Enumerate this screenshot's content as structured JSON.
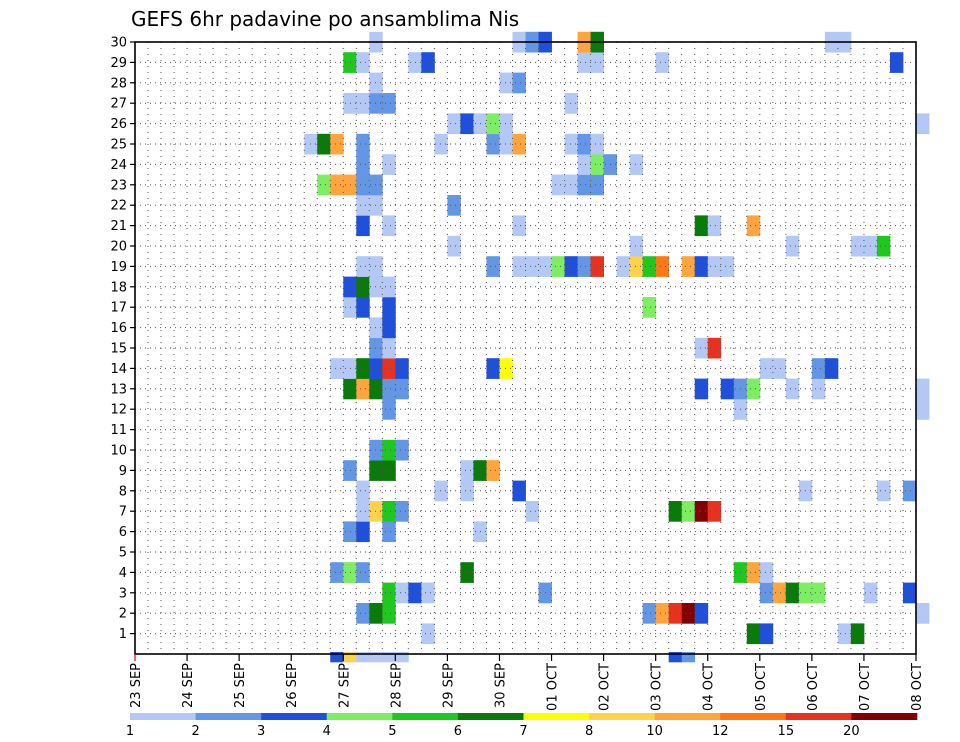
{
  "chart_data": {
    "type": "heatmap",
    "title": "GEFS 6hr padavine po ansamblima Nis",
    "x_tick_labels": [
      "23 SEP",
      "24 SEP",
      "25 SEP",
      "26 SEP",
      "27 SEP",
      "28 SEP",
      "29 SEP",
      "30 SEP",
      "01 OCT",
      "02 OCT",
      "03 OCT",
      "04 OCT",
      "05 OCT",
      "06 OCT",
      "07 OCT",
      "08 OCT"
    ],
    "y_range": [
      0,
      30
    ],
    "y_ticks": [
      1,
      2,
      3,
      4,
      5,
      6,
      7,
      8,
      9,
      10,
      11,
      12,
      13,
      14,
      15,
      16,
      17,
      18,
      19,
      20,
      21,
      22,
      23,
      24,
      25,
      26,
      27,
      28,
      29,
      30
    ],
    "grid": true,
    "time_steps_per_day": 4,
    "legend": {
      "placement": "bottom",
      "levels": [
        "1",
        "2",
        "3",
        "4",
        "5",
        "6",
        "7",
        "8",
        "10",
        "12",
        "15",
        "20"
      ],
      "colors": [
        "#b4c8f5",
        "#6496e6",
        "#1e50dc",
        "#7ded62",
        "#1ec81e",
        "#0a7a0a",
        "#ffff00",
        "#ffd24a",
        "#ffa53c",
        "#ff7814",
        "#e6321e",
        "#820000"
      ]
    },
    "cells": [
      {
        "member": 0,
        "step": 15,
        "value": 3
      },
      {
        "member": 0,
        "step": 16,
        "value": 8
      },
      {
        "member": 0,
        "step": 17,
        "value": 1
      },
      {
        "member": 0,
        "step": 18,
        "value": 1
      },
      {
        "member": 0,
        "step": 19,
        "value": 1
      },
      {
        "member": 0,
        "step": 20,
        "value": 1
      },
      {
        "member": 0,
        "step": 41,
        "value": 3
      },
      {
        "member": 0,
        "step": 42,
        "value": 2
      },
      {
        "member": 1,
        "step": 22,
        "value": 1
      },
      {
        "member": 1,
        "step": 47,
        "value": 6
      },
      {
        "member": 1,
        "step": 48,
        "value": 3
      },
      {
        "member": 1,
        "step": 54,
        "value": 1
      },
      {
        "member": 1,
        "step": 55,
        "value": 6
      },
      {
        "member": 2,
        "step": 17,
        "value": 2
      },
      {
        "member": 2,
        "step": 18,
        "value": 6
      },
      {
        "member": 2,
        "step": 19,
        "value": 5
      },
      {
        "member": 2,
        "step": 39,
        "value": 2
      },
      {
        "member": 2,
        "step": 40,
        "value": 10
      },
      {
        "member": 2,
        "step": 41,
        "value": 15
      },
      {
        "member": 2,
        "step": 42,
        "value": 20
      },
      {
        "member": 2,
        "step": 43,
        "value": 3
      },
      {
        "member": 2,
        "step": 60,
        "value": 1
      },
      {
        "member": 3,
        "step": 19,
        "value": 5
      },
      {
        "member": 3,
        "step": 20,
        "value": 1
      },
      {
        "member": 3,
        "step": 21,
        "value": 3
      },
      {
        "member": 3,
        "step": 22,
        "value": 1
      },
      {
        "member": 3,
        "step": 31,
        "value": 2
      },
      {
        "member": 3,
        "step": 48,
        "value": 2
      },
      {
        "member": 3,
        "step": 49,
        "value": 10
      },
      {
        "member": 3,
        "step": 50,
        "value": 6
      },
      {
        "member": 3,
        "step": 51,
        "value": 4
      },
      {
        "member": 3,
        "step": 52,
        "value": 4
      },
      {
        "member": 3,
        "step": 56,
        "value": 1
      },
      {
        "member": 3,
        "step": 59,
        "value": 3
      },
      {
        "member": 4,
        "step": 15,
        "value": 2
      },
      {
        "member": 4,
        "step": 16,
        "value": 4
      },
      {
        "member": 4,
        "step": 17,
        "value": 2
      },
      {
        "member": 4,
        "step": 25,
        "value": 6
      },
      {
        "member": 4,
        "step": 46,
        "value": 5
      },
      {
        "member": 4,
        "step": 47,
        "value": 10
      },
      {
        "member": 4,
        "step": 48,
        "value": 1
      },
      {
        "member": 6,
        "step": 16,
        "value": 2
      },
      {
        "member": 6,
        "step": 17,
        "value": 3
      },
      {
        "member": 6,
        "step": 19,
        "value": 2
      },
      {
        "member": 6,
        "step": 26,
        "value": 1
      },
      {
        "member": 7,
        "step": 17,
        "value": 1
      },
      {
        "member": 7,
        "step": 18,
        "value": 8
      },
      {
        "member": 7,
        "step": 19,
        "value": 5
      },
      {
        "member": 7,
        "step": 20,
        "value": 2
      },
      {
        "member": 7,
        "step": 30,
        "value": 1
      },
      {
        "member": 7,
        "step": 41,
        "value": 6
      },
      {
        "member": 7,
        "step": 42,
        "value": 4
      },
      {
        "member": 7,
        "step": 43,
        "value": 20
      },
      {
        "member": 7,
        "step": 44,
        "value": 15
      },
      {
        "member": 8,
        "step": 17,
        "value": 1
      },
      {
        "member": 8,
        "step": 23,
        "value": 1
      },
      {
        "member": 8,
        "step": 25,
        "value": 1
      },
      {
        "member": 8,
        "step": 29,
        "value": 3
      },
      {
        "member": 8,
        "step": 51,
        "value": 1
      },
      {
        "member": 8,
        "step": 57,
        "value": 1
      },
      {
        "member": 8,
        "step": 59,
        "value": 2
      },
      {
        "member": 9,
        "step": 16,
        "value": 2
      },
      {
        "member": 9,
        "step": 18,
        "value": 6
      },
      {
        "member": 9,
        "step": 19,
        "value": 6
      },
      {
        "member": 9,
        "step": 25,
        "value": 1
      },
      {
        "member": 9,
        "step": 26,
        "value": 6
      },
      {
        "member": 9,
        "step": 27,
        "value": 10
      },
      {
        "member": 10,
        "step": 18,
        "value": 2
      },
      {
        "member": 10,
        "step": 19,
        "value": 5
      },
      {
        "member": 10,
        "step": 20,
        "value": 2
      },
      {
        "member": 12,
        "step": 19,
        "value": 2
      },
      {
        "member": 12,
        "step": 46,
        "value": 1
      },
      {
        "member": 12,
        "step": 60,
        "value": 1
      },
      {
        "member": 13,
        "step": 16,
        "value": 6
      },
      {
        "member": 13,
        "step": 17,
        "value": 10
      },
      {
        "member": 13,
        "step": 18,
        "value": 6
      },
      {
        "member": 13,
        "step": 19,
        "value": 2
      },
      {
        "member": 13,
        "step": 20,
        "value": 2
      },
      {
        "member": 13,
        "step": 43,
        "value": 3
      },
      {
        "member": 13,
        "step": 45,
        "value": 3
      },
      {
        "member": 13,
        "step": 46,
        "value": 2
      },
      {
        "member": 13,
        "step": 47,
        "value": 4
      },
      {
        "member": 13,
        "step": 50,
        "value": 1
      },
      {
        "member": 13,
        "step": 52,
        "value": 1
      },
      {
        "member": 13,
        "step": 60,
        "value": 1
      },
      {
        "member": 14,
        "step": 15,
        "value": 1
      },
      {
        "member": 14,
        "step": 16,
        "value": 1
      },
      {
        "member": 14,
        "step": 17,
        "value": 6
      },
      {
        "member": 14,
        "step": 18,
        "value": 3
      },
      {
        "member": 14,
        "step": 19,
        "value": 15
      },
      {
        "member": 14,
        "step": 20,
        "value": 3
      },
      {
        "member": 14,
        "step": 27,
        "value": 3
      },
      {
        "member": 14,
        "step": 28,
        "value": 7
      },
      {
        "member": 14,
        "step": 48,
        "value": 1
      },
      {
        "member": 14,
        "step": 49,
        "value": 1
      },
      {
        "member": 14,
        "step": 52,
        "value": 2
      },
      {
        "member": 14,
        "step": 53,
        "value": 3
      },
      {
        "member": 15,
        "step": 18,
        "value": 2
      },
      {
        "member": 15,
        "step": 19,
        "value": 1
      },
      {
        "member": 15,
        "step": 43,
        "value": 1
      },
      {
        "member": 15,
        "step": 44,
        "value": 15
      },
      {
        "member": 16,
        "step": 18,
        "value": 1
      },
      {
        "member": 16,
        "step": 19,
        "value": 3
      },
      {
        "member": 17,
        "step": 16,
        "value": 1
      },
      {
        "member": 17,
        "step": 17,
        "value": 3
      },
      {
        "member": 17,
        "step": 19,
        "value": 3
      },
      {
        "member": 17,
        "step": 39,
        "value": 4
      },
      {
        "member": 18,
        "step": 16,
        "value": 3
      },
      {
        "member": 18,
        "step": 17,
        "value": 6
      },
      {
        "member": 18,
        "step": 18,
        "value": 1
      },
      {
        "member": 18,
        "step": 19,
        "value": 1
      },
      {
        "member": 19,
        "step": 17,
        "value": 1
      },
      {
        "member": 19,
        "step": 18,
        "value": 1
      },
      {
        "member": 19,
        "step": 27,
        "value": 2
      },
      {
        "member": 19,
        "step": 29,
        "value": 1
      },
      {
        "member": 19,
        "step": 30,
        "value": 1
      },
      {
        "member": 19,
        "step": 31,
        "value": 1
      },
      {
        "member": 19,
        "step": 32,
        "value": 4
      },
      {
        "member": 19,
        "step": 33,
        "value": 3
      },
      {
        "member": 19,
        "step": 34,
        "value": 2
      },
      {
        "member": 19,
        "step": 35,
        "value": 15
      },
      {
        "member": 19,
        "step": 37,
        "value": 1
      },
      {
        "member": 19,
        "step": 38,
        "value": 8
      },
      {
        "member": 19,
        "step": 39,
        "value": 5
      },
      {
        "member": 19,
        "step": 40,
        "value": 12
      },
      {
        "member": 19,
        "step": 42,
        "value": 10
      },
      {
        "member": 19,
        "step": 43,
        "value": 3
      },
      {
        "member": 19,
        "step": 44,
        "value": 1
      },
      {
        "member": 19,
        "step": 45,
        "value": 1
      },
      {
        "member": 20,
        "step": 24,
        "value": 1
      },
      {
        "member": 20,
        "step": 38,
        "value": 1
      },
      {
        "member": 20,
        "step": 50,
        "value": 1
      },
      {
        "member": 20,
        "step": 55,
        "value": 1
      },
      {
        "member": 20,
        "step": 56,
        "value": 1
      },
      {
        "member": 20,
        "step": 57,
        "value": 5
      },
      {
        "member": 21,
        "step": 17,
        "value": 3
      },
      {
        "member": 21,
        "step": 19,
        "value": 1
      },
      {
        "member": 21,
        "step": 29,
        "value": 1
      },
      {
        "member": 21,
        "step": 43,
        "value": 6
      },
      {
        "member": 21,
        "step": 44,
        "value": 1
      },
      {
        "member": 21,
        "step": 47,
        "value": 10
      },
      {
        "member": 22,
        "step": 17,
        "value": 1
      },
      {
        "member": 22,
        "step": 18,
        "value": 1
      },
      {
        "member": 22,
        "step": 24,
        "value": 2
      },
      {
        "member": 23,
        "step": 14,
        "value": 4
      },
      {
        "member": 23,
        "step": 15,
        "value": 10
      },
      {
        "member": 23,
        "step": 16,
        "value": 10
      },
      {
        "member": 23,
        "step": 17,
        "value": 2
      },
      {
        "member": 23,
        "step": 18,
        "value": 2
      },
      {
        "member": 23,
        "step": 32,
        "value": 1
      },
      {
        "member": 23,
        "step": 33,
        "value": 1
      },
      {
        "member": 23,
        "step": 34,
        "value": 2
      },
      {
        "member": 23,
        "step": 35,
        "value": 2
      },
      {
        "member": 24,
        "step": 17,
        "value": 2
      },
      {
        "member": 24,
        "step": 19,
        "value": 1
      },
      {
        "member": 24,
        "step": 34,
        "value": 1
      },
      {
        "member": 24,
        "step": 35,
        "value": 4
      },
      {
        "member": 24,
        "step": 36,
        "value": 2
      },
      {
        "member": 24,
        "step": 38,
        "value": 1
      },
      {
        "member": 25,
        "step": 13,
        "value": 1
      },
      {
        "member": 25,
        "step": 14,
        "value": 6
      },
      {
        "member": 25,
        "step": 15,
        "value": 10
      },
      {
        "member": 25,
        "step": 17,
        "value": 2
      },
      {
        "member": 25,
        "step": 23,
        "value": 1
      },
      {
        "member": 25,
        "step": 27,
        "value": 2
      },
      {
        "member": 25,
        "step": 28,
        "value": 1
      },
      {
        "member": 25,
        "step": 29,
        "value": 10
      },
      {
        "member": 25,
        "step": 33,
        "value": 1
      },
      {
        "member": 25,
        "step": 34,
        "value": 2
      },
      {
        "member": 25,
        "step": 35,
        "value": 1
      },
      {
        "member": 26,
        "step": 24,
        "value": 1
      },
      {
        "member": 26,
        "step": 25,
        "value": 3
      },
      {
        "member": 26,
        "step": 26,
        "value": 1
      },
      {
        "member": 26,
        "step": 27,
        "value": 4
      },
      {
        "member": 26,
        "step": 28,
        "value": 1
      },
      {
        "member": 26,
        "step": 60,
        "value": 1
      },
      {
        "member": 27,
        "step": 16,
        "value": 1
      },
      {
        "member": 27,
        "step": 17,
        "value": 1
      },
      {
        "member": 27,
        "step": 18,
        "value": 2
      },
      {
        "member": 27,
        "step": 19,
        "value": 2
      },
      {
        "member": 27,
        "step": 33,
        "value": 1
      },
      {
        "member": 28,
        "step": 18,
        "value": 1
      },
      {
        "member": 28,
        "step": 28,
        "value": 1
      },
      {
        "member": 28,
        "step": 29,
        "value": 2
      },
      {
        "member": 29,
        "step": 16,
        "value": 5
      },
      {
        "member": 29,
        "step": 17,
        "value": 1
      },
      {
        "member": 29,
        "step": 21,
        "value": 1
      },
      {
        "member": 29,
        "step": 22,
        "value": 3
      },
      {
        "member": 29,
        "step": 34,
        "value": 1
      },
      {
        "member": 29,
        "step": 35,
        "value": 1
      },
      {
        "member": 29,
        "step": 40,
        "value": 1
      },
      {
        "member": 29,
        "step": 58,
        "value": 3
      },
      {
        "member": 30,
        "step": 18,
        "value": 1
      },
      {
        "member": 30,
        "step": 29,
        "value": 1
      },
      {
        "member": 30,
        "step": 30,
        "value": 2
      },
      {
        "member": 30,
        "step": 31,
        "value": 3
      },
      {
        "member": 30,
        "step": 34,
        "value": 10
      },
      {
        "member": 30,
        "step": 35,
        "value": 6
      },
      {
        "member": 30,
        "step": 53,
        "value": 1
      },
      {
        "member": 30,
        "step": 54,
        "value": 1
      }
    ]
  }
}
